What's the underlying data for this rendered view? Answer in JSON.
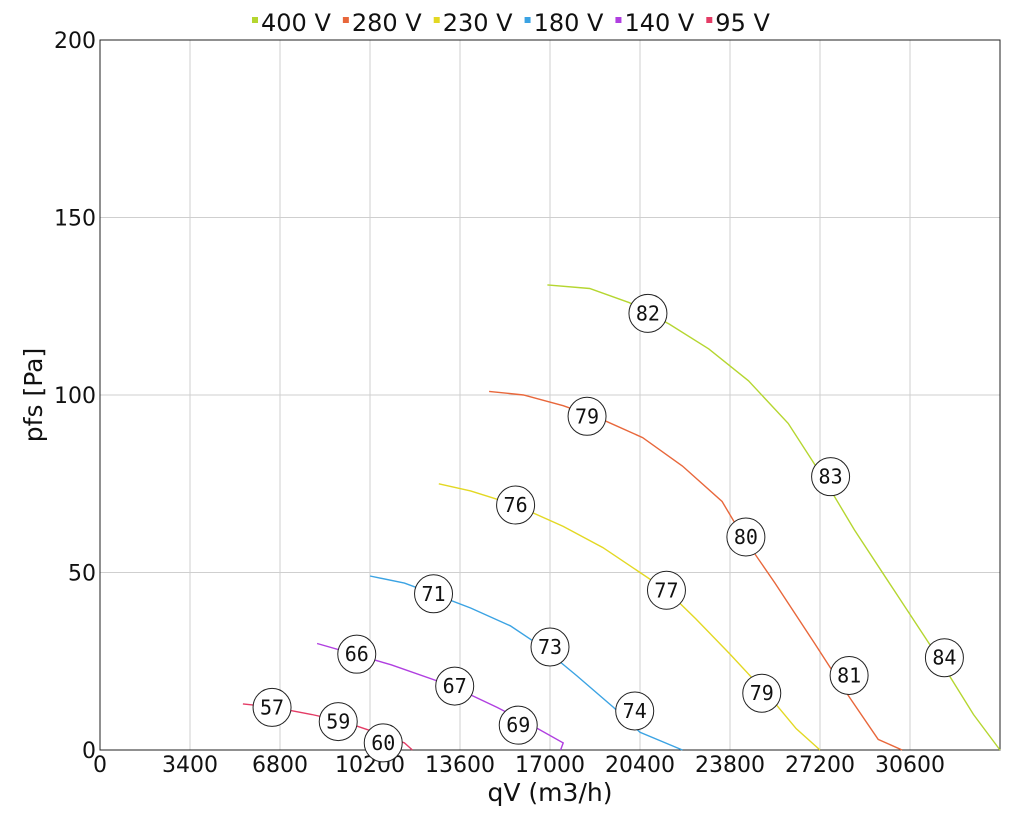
{
  "chart_data": {
    "type": "line",
    "title": "",
    "xlabel": "qV (m3/h)",
    "ylabel": "pfs [Pa]",
    "xlim": [
      0,
      34000
    ],
    "ylim": [
      0,
      200
    ],
    "x_ticks": [
      0,
      3400,
      6800,
      10200,
      13600,
      17000,
      20400,
      23800,
      27200,
      30600
    ],
    "y_ticks": [
      0,
      50,
      100,
      150,
      200
    ],
    "grid": true,
    "legend": "top",
    "series": [
      {
        "name": "400 V",
        "color": "#b5d630",
        "points": [
          [
            16900,
            131
          ],
          [
            18500,
            130
          ],
          [
            20000,
            126
          ],
          [
            21500,
            120
          ],
          [
            23000,
            113
          ],
          [
            24500,
            104
          ],
          [
            26000,
            92
          ],
          [
            27300,
            77
          ],
          [
            28500,
            62
          ],
          [
            30000,
            45
          ],
          [
            31500,
            28
          ],
          [
            33000,
            10
          ],
          [
            34000,
            0
          ]
        ],
        "labels": [
          {
            "x": 20700,
            "y": 123,
            "text": "82"
          },
          {
            "x": 27600,
            "y": 77,
            "text": "83"
          },
          {
            "x": 31900,
            "y": 26,
            "text": "84"
          }
        ]
      },
      {
        "name": "280 V",
        "color": "#e8673b",
        "points": [
          [
            14700,
            101
          ],
          [
            16000,
            100
          ],
          [
            17500,
            97
          ],
          [
            19000,
            93
          ],
          [
            20500,
            88
          ],
          [
            22000,
            80
          ],
          [
            23500,
            70
          ],
          [
            24300,
            60
          ],
          [
            25500,
            47
          ],
          [
            27000,
            30
          ],
          [
            28300,
            15
          ],
          [
            29400,
            3
          ],
          [
            30300,
            0
          ]
        ],
        "labels": [
          {
            "x": 18400,
            "y": 94,
            "text": "79"
          },
          {
            "x": 24400,
            "y": 60,
            "text": "80"
          },
          {
            "x": 28300,
            "y": 21,
            "text": "81"
          }
        ]
      },
      {
        "name": "230 V",
        "color": "#e3d823",
        "points": [
          [
            12800,
            75
          ],
          [
            14000,
            73
          ],
          [
            15700,
            69
          ],
          [
            17500,
            63
          ],
          [
            19000,
            57
          ],
          [
            20400,
            50
          ],
          [
            21400,
            45
          ],
          [
            22500,
            37
          ],
          [
            23800,
            27
          ],
          [
            25300,
            15
          ],
          [
            26300,
            6
          ],
          [
            27200,
            0
          ]
        ],
        "labels": [
          {
            "x": 15700,
            "y": 69,
            "text": "76"
          },
          {
            "x": 21400,
            "y": 45,
            "text": "77"
          },
          {
            "x": 25000,
            "y": 16,
            "text": "79"
          }
        ]
      },
      {
        "name": "180 V",
        "color": "#3ba3e3",
        "points": [
          [
            10200,
            49
          ],
          [
            11500,
            47
          ],
          [
            12600,
            44
          ],
          [
            14000,
            40
          ],
          [
            15500,
            35
          ],
          [
            16700,
            29
          ],
          [
            18000,
            21
          ],
          [
            19400,
            12
          ],
          [
            20400,
            5
          ],
          [
            22000,
            0
          ]
        ],
        "labels": [
          {
            "x": 12600,
            "y": 44,
            "text": "71"
          },
          {
            "x": 17000,
            "y": 29,
            "text": "73"
          },
          {
            "x": 20200,
            "y": 11,
            "text": "74"
          }
        ]
      },
      {
        "name": "140 V",
        "color": "#b03fe0",
        "points": [
          [
            8200,
            30
          ],
          [
            9600,
            27
          ],
          [
            11000,
            24
          ],
          [
            13300,
            18
          ],
          [
            15000,
            12
          ],
          [
            16300,
            7
          ],
          [
            17500,
            2
          ],
          [
            17400,
            0
          ]
        ],
        "labels": [
          {
            "x": 9700,
            "y": 27,
            "text": "66"
          },
          {
            "x": 13400,
            "y": 18,
            "text": "67"
          },
          {
            "x": 15800,
            "y": 7,
            "text": "69"
          }
        ]
      },
      {
        "name": "95 V",
        "color": "#e43c66",
        "points": [
          [
            5400,
            13
          ],
          [
            6600,
            12
          ],
          [
            8000,
            10
          ],
          [
            9200,
            8
          ],
          [
            10400,
            5
          ],
          [
            11500,
            2
          ],
          [
            11800,
            0
          ]
        ],
        "labels": [
          {
            "x": 6500,
            "y": 12,
            "text": "57"
          },
          {
            "x": 9000,
            "y": 8,
            "text": "59"
          },
          {
            "x": 10700,
            "y": 2,
            "text": "60"
          }
        ]
      }
    ]
  }
}
